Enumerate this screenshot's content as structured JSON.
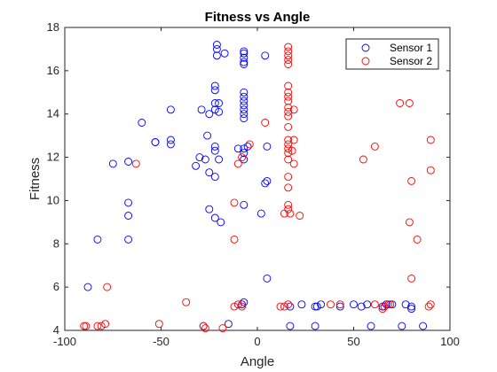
{
  "chart_data": {
    "type": "scatter",
    "title": "Fitness vs Angle",
    "xlabel": "Angle",
    "ylabel": "Fitness",
    "xlim": [
      -100,
      100
    ],
    "ylim": [
      4,
      18
    ],
    "xticks": [
      -100,
      -50,
      0,
      50,
      100
    ],
    "yticks": [
      4,
      6,
      8,
      10,
      12,
      14,
      16,
      18
    ],
    "grid": false,
    "legend_position": "top-right",
    "series": [
      {
        "name": "Sensor 1",
        "color": "#0000ff",
        "marker": "circle-open",
        "points": [
          [
            -88,
            6.0
          ],
          [
            -83,
            8.2
          ],
          [
            -75,
            11.7
          ],
          [
            -67,
            11.8
          ],
          [
            -67,
            9.9
          ],
          [
            -67,
            9.3
          ],
          [
            -67,
            8.2
          ],
          [
            -60,
            13.6
          ],
          [
            -53,
            12.7
          ],
          [
            -53,
            12.7
          ],
          [
            -45,
            14.2
          ],
          [
            -45,
            12.8
          ],
          [
            -45,
            12.6
          ],
          [
            -32,
            11.6
          ],
          [
            -30,
            12.0
          ],
          [
            -29,
            14.2
          ],
          [
            -27,
            11.9
          ],
          [
            -26,
            13.0
          ],
          [
            -25,
            11.3
          ],
          [
            -25,
            9.6
          ],
          [
            -25,
            14.0
          ],
          [
            -22,
            15.3
          ],
          [
            -22,
            15.1
          ],
          [
            -22,
            14.5
          ],
          [
            -22,
            14.2
          ],
          [
            -22,
            12.5
          ],
          [
            -22,
            12.3
          ],
          [
            -22,
            11.1
          ],
          [
            -22,
            9.2
          ],
          [
            -21,
            17.2
          ],
          [
            -21,
            17.0
          ],
          [
            -21,
            16.7
          ],
          [
            -20,
            14.5
          ],
          [
            -20,
            14.1
          ],
          [
            -20,
            11.9
          ],
          [
            -19,
            9.0
          ],
          [
            -17,
            16.8
          ],
          [
            -10,
            12.4
          ],
          [
            -7,
            16.9
          ],
          [
            -7,
            16.8
          ],
          [
            -7,
            16.6
          ],
          [
            -7,
            16.4
          ],
          [
            -7,
            16.3
          ],
          [
            -7,
            15.0
          ],
          [
            -7,
            14.8
          ],
          [
            -7,
            14.6
          ],
          [
            -7,
            14.4
          ],
          [
            -7,
            14.2
          ],
          [
            -7,
            14.0
          ],
          [
            -7,
            13.8
          ],
          [
            -7,
            12.4
          ],
          [
            -7,
            12.2
          ],
          [
            -7,
            11.9
          ],
          [
            -7,
            9.8
          ],
          [
            -5,
            12.5
          ],
          [
            2,
            9.4
          ],
          [
            4,
            10.8
          ],
          [
            4,
            16.7
          ],
          [
            5,
            10.9
          ],
          [
            5,
            12.5
          ],
          [
            5,
            6.4
          ],
          [
            -7,
            5.3
          ],
          [
            -28,
            4.2
          ],
          [
            -15,
            4.3
          ],
          [
            -8,
            5.2
          ],
          [
            17,
            5.1
          ],
          [
            17,
            4.2
          ],
          [
            23,
            5.2
          ],
          [
            30,
            5.1
          ],
          [
            31,
            5.1
          ],
          [
            33,
            5.2
          ],
          [
            43,
            5.1
          ],
          [
            50,
            5.2
          ],
          [
            54,
            5.1
          ],
          [
            57,
            5.2
          ],
          [
            59,
            4.2
          ],
          [
            65,
            5.1
          ],
          [
            67,
            5.2
          ],
          [
            70,
            5.2
          ],
          [
            75,
            4.2
          ],
          [
            77,
            5.2
          ],
          [
            80,
            5.1
          ],
          [
            80,
            5.0
          ],
          [
            86,
            4.2
          ],
          [
            30,
            4.2
          ]
        ]
      },
      {
        "name": "Sensor 2",
        "color": "#ff0000",
        "marker": "circle-open",
        "points": [
          [
            -90,
            4.2
          ],
          [
            -89,
            4.2
          ],
          [
            -83,
            4.2
          ],
          [
            -81,
            4.2
          ],
          [
            -79,
            4.3
          ],
          [
            -78,
            6.0
          ],
          [
            -63,
            11.7
          ],
          [
            -51,
            4.3
          ],
          [
            -37,
            5.3
          ],
          [
            -28,
            4.2
          ],
          [
            -27,
            4.1
          ],
          [
            -18,
            4.1
          ],
          [
            -12,
            5.1
          ],
          [
            -10,
            5.2
          ],
          [
            -8,
            5.1
          ],
          [
            -12,
            8.2
          ],
          [
            -12,
            9.9
          ],
          [
            -10,
            11.7
          ],
          [
            -8,
            12.0
          ],
          [
            -4,
            12.6
          ],
          [
            4,
            13.6
          ],
          [
            14,
            9.4
          ],
          [
            16,
            9.6
          ],
          [
            16,
            9.8
          ],
          [
            16,
            10.6
          ],
          [
            16,
            11.1
          ],
          [
            16,
            11.9
          ],
          [
            16,
            12.2
          ],
          [
            16,
            12.4
          ],
          [
            16,
            12.6
          ],
          [
            16,
            12.8
          ],
          [
            16,
            13.4
          ],
          [
            16,
            13.9
          ],
          [
            16,
            14.1
          ],
          [
            16,
            14.3
          ],
          [
            16,
            14.6
          ],
          [
            16,
            14.8
          ],
          [
            16,
            15.0
          ],
          [
            16,
            15.3
          ],
          [
            16,
            16.3
          ],
          [
            16,
            16.5
          ],
          [
            16,
            16.7
          ],
          [
            16,
            16.9
          ],
          [
            16,
            17.1
          ],
          [
            17,
            9.4
          ],
          [
            18,
            12.3
          ],
          [
            19,
            11.7
          ],
          [
            19,
            12.8
          ],
          [
            19,
            14.2
          ],
          [
            22,
            9.3
          ],
          [
            12,
            5.1
          ],
          [
            14,
            5.1
          ],
          [
            16,
            5.2
          ],
          [
            38,
            5.2
          ],
          [
            43,
            5.2
          ],
          [
            55,
            11.9
          ],
          [
            61,
            12.5
          ],
          [
            61,
            5.2
          ],
          [
            65,
            5.0
          ],
          [
            66,
            5.1
          ],
          [
            68,
            5.2
          ],
          [
            69,
            5.2
          ],
          [
            74,
            14.5
          ],
          [
            79,
            14.5
          ],
          [
            79,
            9.0
          ],
          [
            80,
            10.9
          ],
          [
            80,
            6.4
          ],
          [
            83,
            8.2
          ],
          [
            89,
            5.1
          ],
          [
            90,
            5.2
          ],
          [
            90,
            11.4
          ],
          [
            90,
            12.8
          ]
        ]
      }
    ]
  }
}
